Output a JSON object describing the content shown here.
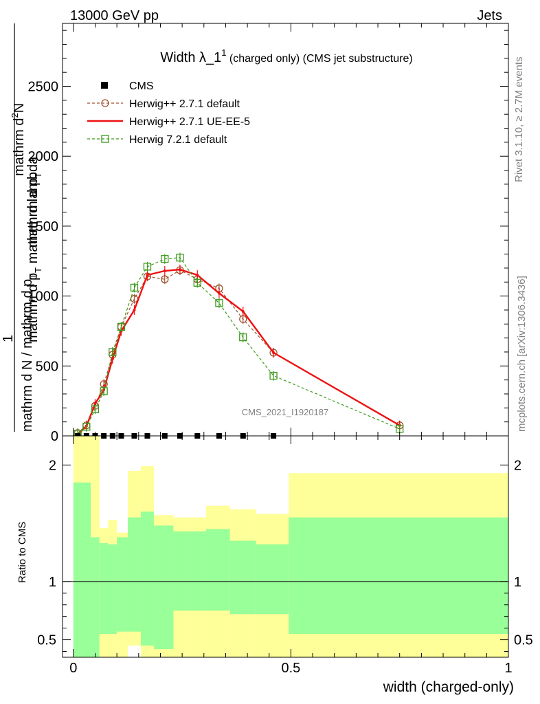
{
  "header": {
    "left": "13000 GeV pp",
    "right": "Jets"
  },
  "side": {
    "rivet": "Rivet 3.1.10, ≥ 2.7M events",
    "mcplots": "mcplots.cern.ch [arXiv:1306.3436]"
  },
  "watermark": "CMS_2021_I1920187",
  "title": {
    "main": "Width λ_1",
    "sup": "1",
    "sub": " (charged only) (CMS jet substructure)"
  },
  "ylabel_main": {
    "line1": "mathrm d",
    "line1_sup": "2",
    "line1_rest": "N",
    "line2": "mathrm d p",
    "line2_sub": "T",
    "line2_rest": " mathrm d lambda",
    "one": "1",
    "den1": "mathrm d N / mathrm d p",
    "den1_sub": "T",
    "den2": "mathrm d p",
    "den2_sub": "T"
  },
  "ylabel_ratio": "Ratio to CMS",
  "xlabel": "width (charged-only)",
  "colors": {
    "cms": "#000000",
    "herwigpp_default": "#a0522d",
    "herwigpp_ueee5": "#ee1111",
    "herwig7": "#3a9a1a",
    "band_inner": "#99ff99",
    "band_outer": "#ffff99"
  },
  "chart_data": [
    {
      "type": "line",
      "xlim": [
        -0.025,
        1.0
      ],
      "ylim": [
        0,
        2950
      ],
      "yticks": [
        0,
        500,
        1000,
        1500,
        2000,
        2500
      ],
      "xticks": [
        0,
        0.5,
        1
      ],
      "xtick_labels": [
        "0",
        "0.5",
        "1"
      ],
      "legend_position": "top-left",
      "series": [
        {
          "name": "CMS",
          "style": "markers",
          "x": [
            0.01,
            0.03,
            0.05,
            0.07,
            0.09,
            0.11,
            0.14,
            0.17,
            0.21,
            0.245,
            0.285,
            0.335,
            0.39,
            0.46
          ],
          "y": [
            0,
            0,
            0,
            0,
            0,
            0,
            0,
            0,
            0,
            0,
            0,
            0,
            0,
            0
          ]
        },
        {
          "name": "Herwig++ 2.7.1 default",
          "style": "dashed-circle",
          "x": [
            0.01,
            0.03,
            0.05,
            0.07,
            0.09,
            0.11,
            0.14,
            0.17,
            0.21,
            0.245,
            0.285,
            0.335,
            0.39,
            0.46,
            0.75
          ],
          "y": [
            20,
            75,
            215,
            370,
            580,
            780,
            980,
            1140,
            1120,
            1185,
            1120,
            1055,
            835,
            595,
            75
          ]
        },
        {
          "name": "Herwig++ 2.7.1 UE-EE-5",
          "style": "solid",
          "x": [
            0.01,
            0.03,
            0.05,
            0.07,
            0.09,
            0.11,
            0.14,
            0.17,
            0.21,
            0.245,
            0.285,
            0.335,
            0.39,
            0.46,
            0.75
          ],
          "y": [
            10,
            70,
            230,
            330,
            550,
            750,
            900,
            1150,
            1180,
            1190,
            1150,
            1020,
            890,
            595,
            75
          ]
        },
        {
          "name": "Herwig 7.2.1 default",
          "style": "dashed-square",
          "x": [
            0.01,
            0.03,
            0.05,
            0.07,
            0.09,
            0.11,
            0.14,
            0.17,
            0.21,
            0.245,
            0.285,
            0.335,
            0.39,
            0.46,
            0.75
          ],
          "y": [
            15,
            65,
            190,
            320,
            600,
            780,
            1060,
            1210,
            1265,
            1275,
            1095,
            950,
            705,
            430,
            50
          ]
        }
      ]
    },
    {
      "type": "area",
      "ylim": [
        0.35,
        2.25
      ],
      "yticks": [
        0.5,
        1,
        2
      ],
      "ytick_labels": [
        "0.5",
        "1",
        "2"
      ],
      "reference_line": 1,
      "bins": [
        0,
        0.04,
        0.06,
        0.08,
        0.1,
        0.125,
        0.155,
        0.185,
        0.23,
        0.26,
        0.305,
        0.36,
        0.42,
        0.495,
        1.0
      ],
      "inner_lo": [
        0.35,
        0.35,
        0.55,
        0.55,
        0.57,
        0.57,
        0.45,
        0.42,
        0.75,
        0.75,
        0.75,
        0.72,
        0.72,
        0.55
      ],
      "inner_hi": [
        1.85,
        1.38,
        1.33,
        1.32,
        1.38,
        1.55,
        1.6,
        1.48,
        1.43,
        1.43,
        1.45,
        1.35,
        1.32,
        1.55
      ],
      "outer_lo": [
        0.35,
        0.35,
        0.35,
        0.35,
        0.35,
        0.45,
        0.35,
        0.35,
        0.35,
        0.35,
        0.35,
        0.35,
        0.35,
        0.35
      ],
      "outer_hi": [
        2.25,
        2.25,
        1.46,
        1.53,
        1.42,
        1.95,
        1.99,
        1.57,
        1.55,
        1.55,
        1.65,
        1.62,
        1.58,
        1.93
      ]
    }
  ]
}
